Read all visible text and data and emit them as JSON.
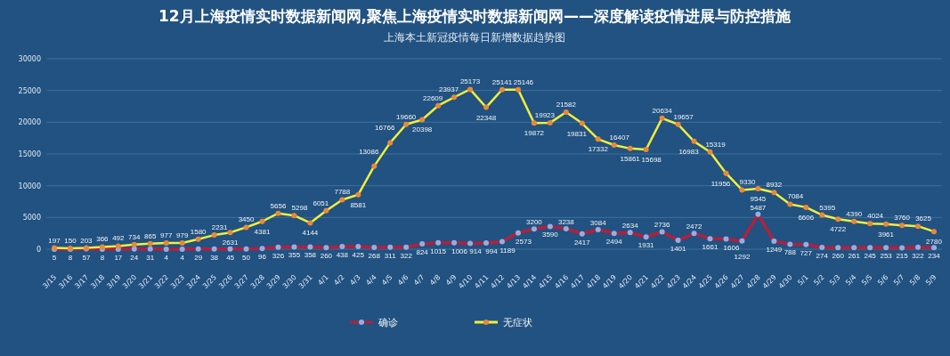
{
  "chart_data": {
    "type": "line",
    "title": "12月上海疫情实时数据新闻网,聚焦上海疫情实时数据新闻网——深度解读疫情进展与防控措施",
    "subtitle": "上海本土新冠疫情每日新增数据趋势图",
    "categories": [
      "3/15",
      "3/16",
      "3/17",
      "3/18",
      "3/19",
      "3/20",
      "3/21",
      "3/22",
      "3/23",
      "3/24",
      "3/25",
      "3/26",
      "3/27",
      "3/28",
      "3/29",
      "3/30",
      "3/31",
      "4/1",
      "4/2",
      "4/3",
      "4/4",
      "4/5",
      "4/6",
      "4/7",
      "4/8",
      "4/9",
      "4/10",
      "4/11",
      "4/12",
      "4/13",
      "4/14",
      "4/15",
      "4/16",
      "4/17",
      "4/18",
      "4/19",
      "4/20",
      "4/21",
      "4/22",
      "4/23",
      "4/24",
      "4/25",
      "4/26",
      "4/27",
      "4/28",
      "4/29",
      "4/30",
      "5/1",
      "5/2",
      "5/3",
      "5/4",
      "5/5",
      "5/6",
      "5/7",
      "5/8",
      "5/9"
    ],
    "series": [
      {
        "name": "确诊",
        "color": "#b3203c",
        "values": [
          5,
          8,
          57,
          8,
          17,
          24,
          31,
          4,
          4,
          29,
          38,
          45,
          50,
          96,
          326,
          355,
          358,
          260,
          438,
          425,
          268,
          311,
          322,
          824,
          1015,
          1006,
          914,
          994,
          1189,
          2573,
          3200,
          3590,
          3238,
          2417,
          3084,
          2494,
          2634,
          1931,
          2736,
          1401,
          2472,
          1661,
          1606,
          1292,
          5487,
          1249,
          788,
          727,
          274,
          260,
          261,
          245,
          253,
          215,
          322,
          234
        ]
      },
      {
        "name": "无症状",
        "color": "#f2ee3a",
        "values": [
          197,
          150,
          203,
          366,
          492,
          734,
          865,
          977,
          979,
          1580,
          2231,
          2631,
          3450,
          4381,
          5656,
          5298,
          4144,
          6051,
          7788,
          8581,
          13086,
          16766,
          19660,
          20398,
          22609,
          23937,
          25173,
          22348,
          25141,
          25146,
          19872,
          19923,
          21582,
          19831,
          17332,
          16407,
          15861,
          15698,
          20634,
          19657,
          16983,
          15319,
          11956,
          9330,
          9545,
          8932,
          7084,
          6606,
          5395,
          4722,
          4390,
          4024,
          3961,
          3760,
          3625,
          2780
        ]
      }
    ],
    "ylim": [
      0,
      30000
    ],
    "yticks": [
      0,
      5000,
      10000,
      15000,
      20000,
      25000,
      30000
    ],
    "grid": "y",
    "marker": "circle",
    "line_style": "solid",
    "legend": "bottom",
    "data_labels": true
  }
}
